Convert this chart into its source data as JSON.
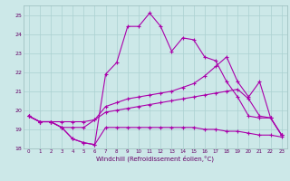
{
  "xlabel": "Windchill (Refroidissement éolien,°C)",
  "x": [
    0,
    1,
    2,
    3,
    4,
    5,
    6,
    7,
    8,
    9,
    10,
    11,
    12,
    13,
    14,
    15,
    16,
    17,
    18,
    19,
    20,
    21,
    22,
    23
  ],
  "line_peak": [
    19.7,
    19.4,
    19.4,
    19.1,
    18.5,
    18.3,
    18.2,
    21.9,
    22.5,
    24.4,
    24.4,
    25.1,
    24.4,
    23.1,
    23.8,
    23.7,
    22.8,
    22.6,
    21.5,
    20.7,
    19.7,
    19.6,
    19.6,
    18.7
  ],
  "line_rise": [
    19.7,
    19.4,
    19.4,
    19.1,
    19.1,
    19.1,
    19.5,
    20.2,
    20.4,
    20.6,
    20.7,
    20.8,
    20.9,
    21.0,
    21.2,
    21.4,
    21.8,
    22.3,
    22.8,
    21.5,
    20.7,
    21.5,
    19.6,
    18.7
  ],
  "line_flat_hi": [
    19.7,
    19.4,
    19.4,
    19.4,
    19.4,
    19.4,
    19.5,
    19.9,
    20.0,
    20.1,
    20.2,
    20.3,
    20.4,
    20.5,
    20.6,
    20.7,
    20.8,
    20.9,
    21.0,
    21.1,
    20.6,
    19.7,
    19.6,
    18.7
  ],
  "line_flat_lo": [
    19.7,
    19.4,
    19.4,
    19.1,
    18.5,
    18.3,
    18.2,
    19.1,
    19.1,
    19.1,
    19.1,
    19.1,
    19.1,
    19.1,
    19.1,
    19.1,
    19.0,
    19.0,
    18.9,
    18.9,
    18.8,
    18.7,
    18.7,
    18.6
  ],
  "bg_color": "#cce8e8",
  "grid_color": "#aad0d0",
  "line_color": "#aa00aa",
  "ylim": [
    18,
    25.5
  ],
  "xlim": [
    -0.5,
    23.5
  ]
}
